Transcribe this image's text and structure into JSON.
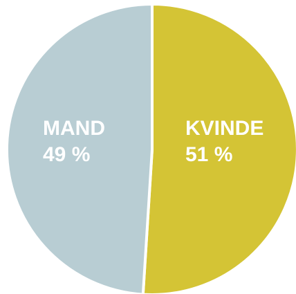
{
  "chart_data": {
    "type": "pie",
    "slices": [
      {
        "label": "KVINDE",
        "value": 51,
        "value_text": "51 %",
        "color": "#D4C435"
      },
      {
        "label": "MAND",
        "value": 49,
        "value_text": "49 %",
        "color": "#B8CDD3"
      }
    ],
    "start_direction": "top",
    "direction": "clockwise",
    "separator_color": "#ffffff",
    "legend": "none"
  }
}
